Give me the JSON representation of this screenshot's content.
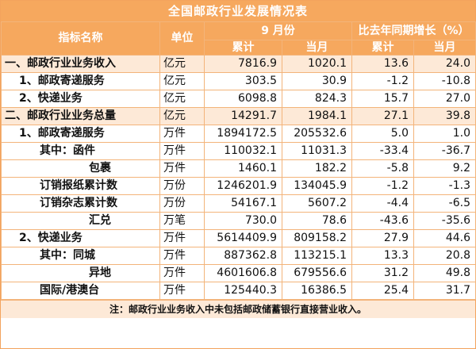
{
  "title": "全国邮政行业发展情况表",
  "headers": {
    "indicator": "指标名称",
    "unit": "单位",
    "month": "9 月份",
    "yoy": "比去年同期增长（%）",
    "cumulative": "累计",
    "current": "当月",
    "yoy_cumulative": "累计",
    "yoy_current": "当月"
  },
  "rows": [
    {
      "name": "一、邮政行业业务收入",
      "unit": "亿元",
      "cum": "7816.9",
      "cur": "1020.1",
      "yoy_cum": "13.6",
      "yoy_cur": "24.0",
      "indent": 0,
      "highlight": true
    },
    {
      "name": "1、邮政寄递服务",
      "unit": "亿元",
      "cum": "303.5",
      "cur": "30.9",
      "yoy_cum": "-1.2",
      "yoy_cur": "-10.8",
      "indent": 1,
      "highlight": false
    },
    {
      "name": "2、快递业务",
      "unit": "亿元",
      "cum": "6098.8",
      "cur": "824.3",
      "yoy_cum": "15.7",
      "yoy_cur": "27.0",
      "indent": 1,
      "highlight": false
    },
    {
      "name": "二、邮政行业业务总量",
      "unit": "亿元",
      "cum": "14291.7",
      "cur": "1984.1",
      "yoy_cum": "27.1",
      "yoy_cur": "39.8",
      "indent": 0,
      "highlight": true
    },
    {
      "name": "1、邮政寄递服务",
      "unit": "万件",
      "cum": "1894172.5",
      "cur": "205532.6",
      "yoy_cum": "5.0",
      "yoy_cur": "1.0",
      "indent": 1,
      "highlight": false
    },
    {
      "name": "其中：函件",
      "unit": "万件",
      "cum": "110032.1",
      "cur": "11031.3",
      "yoy_cum": "-33.4",
      "yoy_cur": "-36.7",
      "indent": 2,
      "highlight": false
    },
    {
      "name": "包裹",
      "unit": "万件",
      "cum": "1460.1",
      "cur": "182.2",
      "yoy_cum": "-5.8",
      "yoy_cur": "9.2",
      "indent": 3,
      "highlight": false
    },
    {
      "name": "订销报纸累计数",
      "unit": "万份",
      "cum": "1246201.9",
      "cur": "134045.9",
      "yoy_cum": "-1.2",
      "yoy_cur": "-1.3",
      "indent": 2,
      "highlight": false
    },
    {
      "name": "订销杂志累计数",
      "unit": "万份",
      "cum": "54167.1",
      "cur": "5607.2",
      "yoy_cum": "-4.4",
      "yoy_cur": "-6.5",
      "indent": 2,
      "highlight": false
    },
    {
      "name": "汇兑",
      "unit": "万笔",
      "cum": "730.0",
      "cur": "78.6",
      "yoy_cum": "-43.6",
      "yoy_cur": "-35.6",
      "indent": 3,
      "highlight": false
    },
    {
      "name": "2、快递业务",
      "unit": "万件",
      "cum": "5614409.9",
      "cur": "809158.2",
      "yoy_cum": "27.9",
      "yoy_cur": "44.6",
      "indent": 1,
      "highlight": false
    },
    {
      "name": "其中：同城",
      "unit": "万件",
      "cum": "887362.8",
      "cur": "113215.1",
      "yoy_cum": "13.3",
      "yoy_cur": "20.8",
      "indent": 2,
      "highlight": false
    },
    {
      "name": "异地",
      "unit": "万件",
      "cum": "4601606.8",
      "cur": "679556.6",
      "yoy_cum": "31.2",
      "yoy_cur": "49.8",
      "indent": 3,
      "highlight": false
    },
    {
      "name": "国际/港澳台",
      "unit": "万件",
      "cum": "125440.3",
      "cur": "16386.5",
      "yoy_cum": "25.4",
      "yoy_cur": "31.7",
      "indent": 2,
      "highlight": false
    }
  ],
  "footnote": "注：邮政行业业务收入中未包括邮政储蓄银行直接营业收入。",
  "colors": {
    "header_bg": "#f6a85e",
    "highlight_bg": "#fde9d7",
    "border": "#f3b47a"
  }
}
